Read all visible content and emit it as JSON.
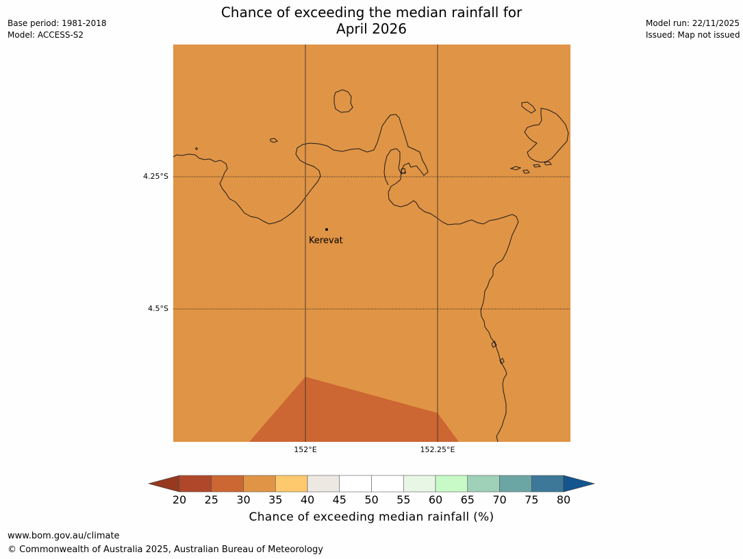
{
  "title_line1": "Chance of exceeding the median rainfall for",
  "title_line2": "April 2026",
  "meta_left": {
    "base_period": "Base period: 1981-2018",
    "model": "Model: ACCESS-S2"
  },
  "meta_right": {
    "model_run": "Model run: 22/11/2025",
    "issued": "Issued: Map not issued"
  },
  "map": {
    "place_label": "Kerevat",
    "lat_labels": [
      "4.25°S",
      "4.5°S"
    ],
    "lon_labels": [
      "152°E",
      "152.25°E"
    ],
    "land_color": "#e09445",
    "lower_band_color": "#cc6632",
    "coast_color": "#1a1a1a"
  },
  "colorbar": {
    "ticks": [
      "20",
      "25",
      "30",
      "35",
      "40",
      "45",
      "50",
      "55",
      "60",
      "65",
      "70",
      "75",
      "80"
    ],
    "colors": [
      "#b0472a",
      "#cc6632",
      "#e09445",
      "#fdc96c",
      "#ede8e2",
      "#ffffff",
      "#ffffff",
      "#e8f6e6",
      "#c8fac8",
      "#9fd0b8",
      "#6ba6a4",
      "#3d7898"
    ],
    "under_color": "#96391f",
    "over_color": "#15558f",
    "label": "Chance of exceeding median rainfall (%)"
  },
  "footer": {
    "url": "www.bom.gov.au/climate",
    "copyright": "© Commonwealth of Australia 2025, Australian Bureau of Meteorology"
  }
}
